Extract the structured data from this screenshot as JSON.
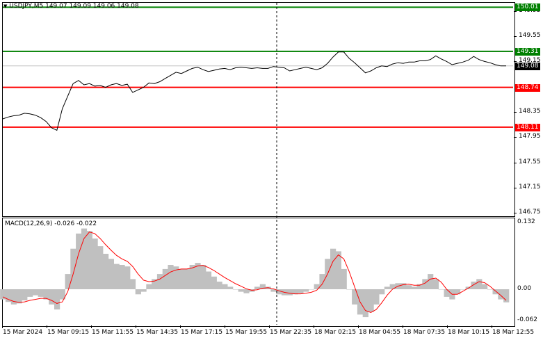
{
  "chart": {
    "symbol_header": "USDJPY,M5  149.07 149.09 149.06 149.08",
    "symbol_icon": "triangle-down-icon",
    "price_levels": [
      {
        "price": 150.01,
        "label": "150.01",
        "color": "#008000"
      },
      {
        "price": 149.31,
        "label": "149.31",
        "color": "#008000"
      },
      {
        "price": 148.74,
        "label": "148.74",
        "color": "#ff0000"
      },
      {
        "price": 148.11,
        "label": "148.11",
        "color": "#ff0000"
      }
    ],
    "current_price": {
      "price": 149.08,
      "label": "149.08",
      "color": "#000000"
    },
    "y_axis_ticks": [
      "149.95",
      "149.55",
      "149.15",
      "148.35",
      "147.95",
      "147.55",
      "147.15",
      "146.75"
    ],
    "y_axis_values": [
      149.95,
      149.55,
      149.15,
      148.35,
      147.95,
      147.55,
      147.15,
      146.75
    ],
    "price_range": [
      146.72,
      150.08
    ],
    "price_series": [
      148.24,
      148.27,
      148.29,
      148.3,
      148.33,
      148.32,
      148.3,
      148.26,
      148.2,
      148.1,
      148.06,
      148.4,
      148.6,
      148.8,
      148.85,
      148.78,
      148.8,
      148.76,
      148.77,
      148.74,
      148.78,
      148.8,
      148.77,
      148.79,
      148.66,
      148.7,
      148.74,
      148.81,
      148.8,
      148.83,
      148.88,
      148.93,
      148.98,
      148.96,
      149.0,
      149.04,
      149.06,
      149.02,
      148.99,
      149.01,
      149.03,
      149.04,
      149.02,
      149.05,
      149.06,
      149.05,
      149.04,
      149.05,
      149.04,
      149.04,
      149.07,
      149.06,
      149.05,
      149.0,
      149.02,
      149.04,
      149.06,
      149.04,
      149.02,
      149.05,
      149.12,
      149.22,
      149.3,
      149.3,
      149.2,
      149.13,
      149.05,
      148.97,
      149.0,
      149.05,
      149.08,
      149.07,
      149.11,
      149.13,
      149.12,
      149.14,
      149.14,
      149.16,
      149.16,
      149.18,
      149.24,
      149.19,
      149.15,
      149.1,
      149.12,
      149.14,
      149.17,
      149.23,
      149.18,
      149.15,
      149.13,
      149.1,
      149.08,
      149.08
    ],
    "time_labels": [
      "15 Mar 2024",
      "15 Mar 09:15",
      "15 Mar 11:55",
      "15 Mar 14:35",
      "15 Mar 17:15",
      "15 Mar 19:55",
      "15 Mar 22:35",
      "18 Mar 02:15",
      "18 Mar 04:55",
      "18 Mar 07:35",
      "18 Mar 10:15",
      "18 Mar 12:55"
    ]
  },
  "macd": {
    "header": "MACD(12,26,9) -0.026 -0.022",
    "axis_ticks": [
      "0.132",
      "0.00",
      "-0.062"
    ],
    "axis_values": [
      0.132,
      0.0,
      -0.062
    ],
    "range": [
      -0.07,
      0.14
    ],
    "histogram": [
      -0.02,
      -0.025,
      -0.03,
      -0.028,
      -0.022,
      -0.015,
      -0.012,
      -0.015,
      -0.02,
      -0.03,
      -0.04,
      -0.02,
      0.03,
      0.08,
      0.11,
      0.12,
      0.115,
      0.1,
      0.085,
      0.07,
      0.06,
      0.05,
      0.048,
      0.045,
      0.02,
      -0.01,
      -0.005,
      0.01,
      0.02,
      0.03,
      0.04,
      0.048,
      0.045,
      0.04,
      0.04,
      0.048,
      0.052,
      0.048,
      0.035,
      0.025,
      0.015,
      0.01,
      0.005,
      0.0,
      -0.005,
      -0.008,
      -0.005,
      0.005,
      0.01,
      0.005,
      -0.005,
      -0.01,
      -0.012,
      -0.012,
      -0.01,
      -0.008,
      -0.005,
      0.0,
      0.01,
      0.03,
      0.06,
      0.08,
      0.075,
      0.04,
      0.0,
      -0.03,
      -0.05,
      -0.055,
      -0.045,
      -0.03,
      -0.01,
      0.005,
      0.01,
      0.012,
      0.012,
      0.008,
      0.005,
      0.01,
      0.02,
      0.03,
      0.02,
      0.0,
      -0.015,
      -0.02,
      -0.01,
      0.0,
      0.005,
      0.015,
      0.02,
      0.01,
      0.0,
      -0.01,
      -0.02,
      -0.026
    ],
    "signal": [
      -0.015,
      -0.02,
      -0.024,
      -0.026,
      -0.025,
      -0.022,
      -0.02,
      -0.018,
      -0.018,
      -0.022,
      -0.028,
      -0.025,
      -0.005,
      0.03,
      0.07,
      0.1,
      0.113,
      0.11,
      0.1,
      0.088,
      0.077,
      0.067,
      0.06,
      0.055,
      0.045,
      0.03,
      0.018,
      0.015,
      0.016,
      0.02,
      0.027,
      0.034,
      0.038,
      0.04,
      0.04,
      0.042,
      0.046,
      0.047,
      0.043,
      0.037,
      0.03,
      0.023,
      0.017,
      0.011,
      0.006,
      0.001,
      -0.002,
      -0.001,
      0.002,
      0.003,
      0.001,
      -0.003,
      -0.006,
      -0.008,
      -0.009,
      -0.009,
      -0.008,
      -0.006,
      -0.002,
      0.01,
      0.03,
      0.055,
      0.068,
      0.06,
      0.035,
      0.005,
      -0.025,
      -0.042,
      -0.046,
      -0.04,
      -0.027,
      -0.012,
      0.0,
      0.006,
      0.009,
      0.01,
      0.008,
      0.008,
      0.012,
      0.02,
      0.022,
      0.014,
      0.0,
      -0.01,
      -0.01,
      -0.004,
      0.002,
      0.009,
      0.015,
      0.013,
      0.006,
      -0.003,
      -0.012,
      -0.022
    ]
  },
  "cursor": {
    "vertical_line": true
  }
}
